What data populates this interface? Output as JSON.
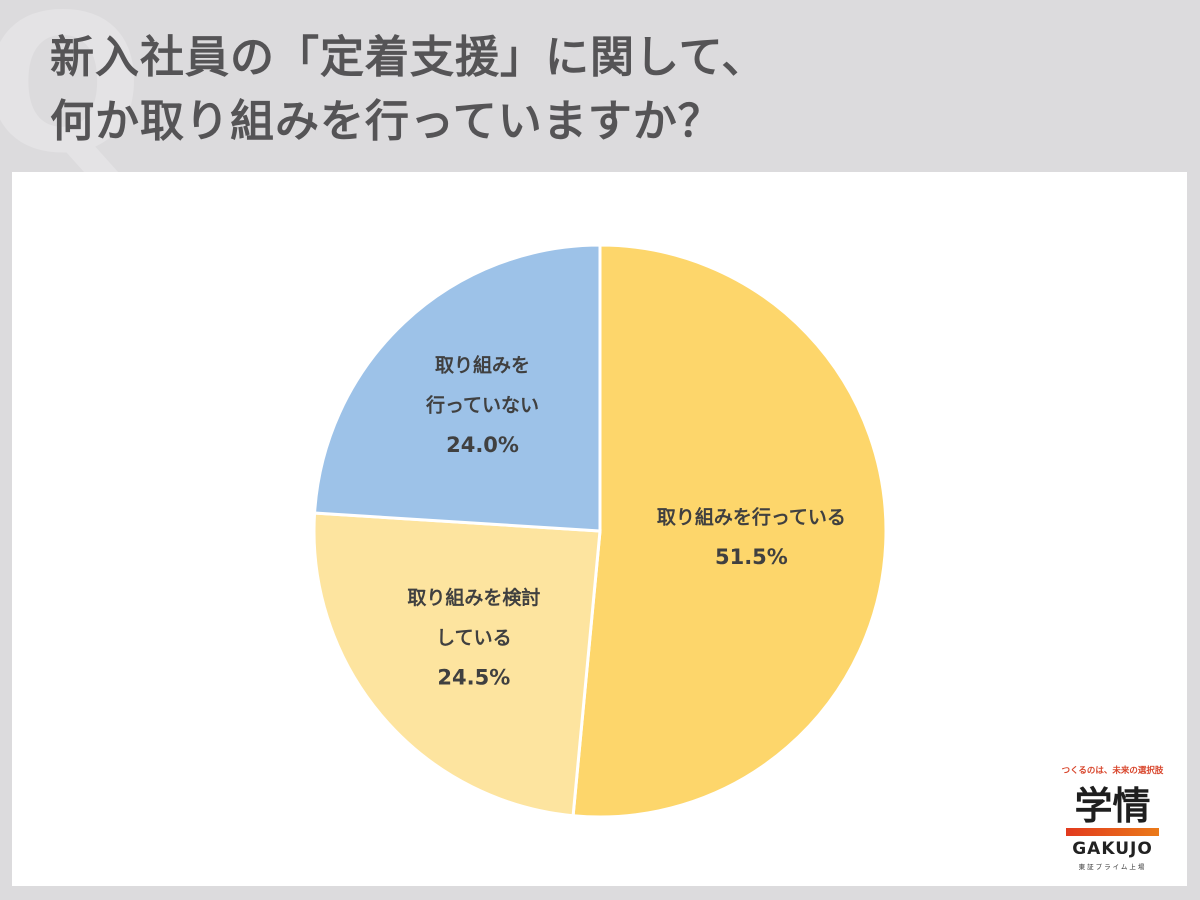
{
  "title": {
    "line1": "新入社員の「定着支援」に関して、",
    "line2": "何か取り組みを行っていますか？"
  },
  "watermark": "Q",
  "chart_data": {
    "type": "pie",
    "start_angle_deg": 0,
    "direction": "clockwise",
    "slices": [
      {
        "label_lines": [
          "取り組みを行っている"
        ],
        "value": 51.5,
        "value_text": "51.5%",
        "color": "#fdd66b"
      },
      {
        "label_lines": [
          "取り組みを検討",
          "している"
        ],
        "value": 24.5,
        "value_text": "24.5%",
        "color": "#fde49f"
      },
      {
        "label_lines": [
          "取り組みを",
          "行っていない"
        ],
        "value": 24.0,
        "value_text": "24.0%",
        "color": "#9dc2e8"
      }
    ]
  },
  "logo": {
    "tagline": "つくるのは、未来の選択肢",
    "kanji": "学情",
    "english": "GAKUJO",
    "subtitle": "東証プライム上場"
  }
}
